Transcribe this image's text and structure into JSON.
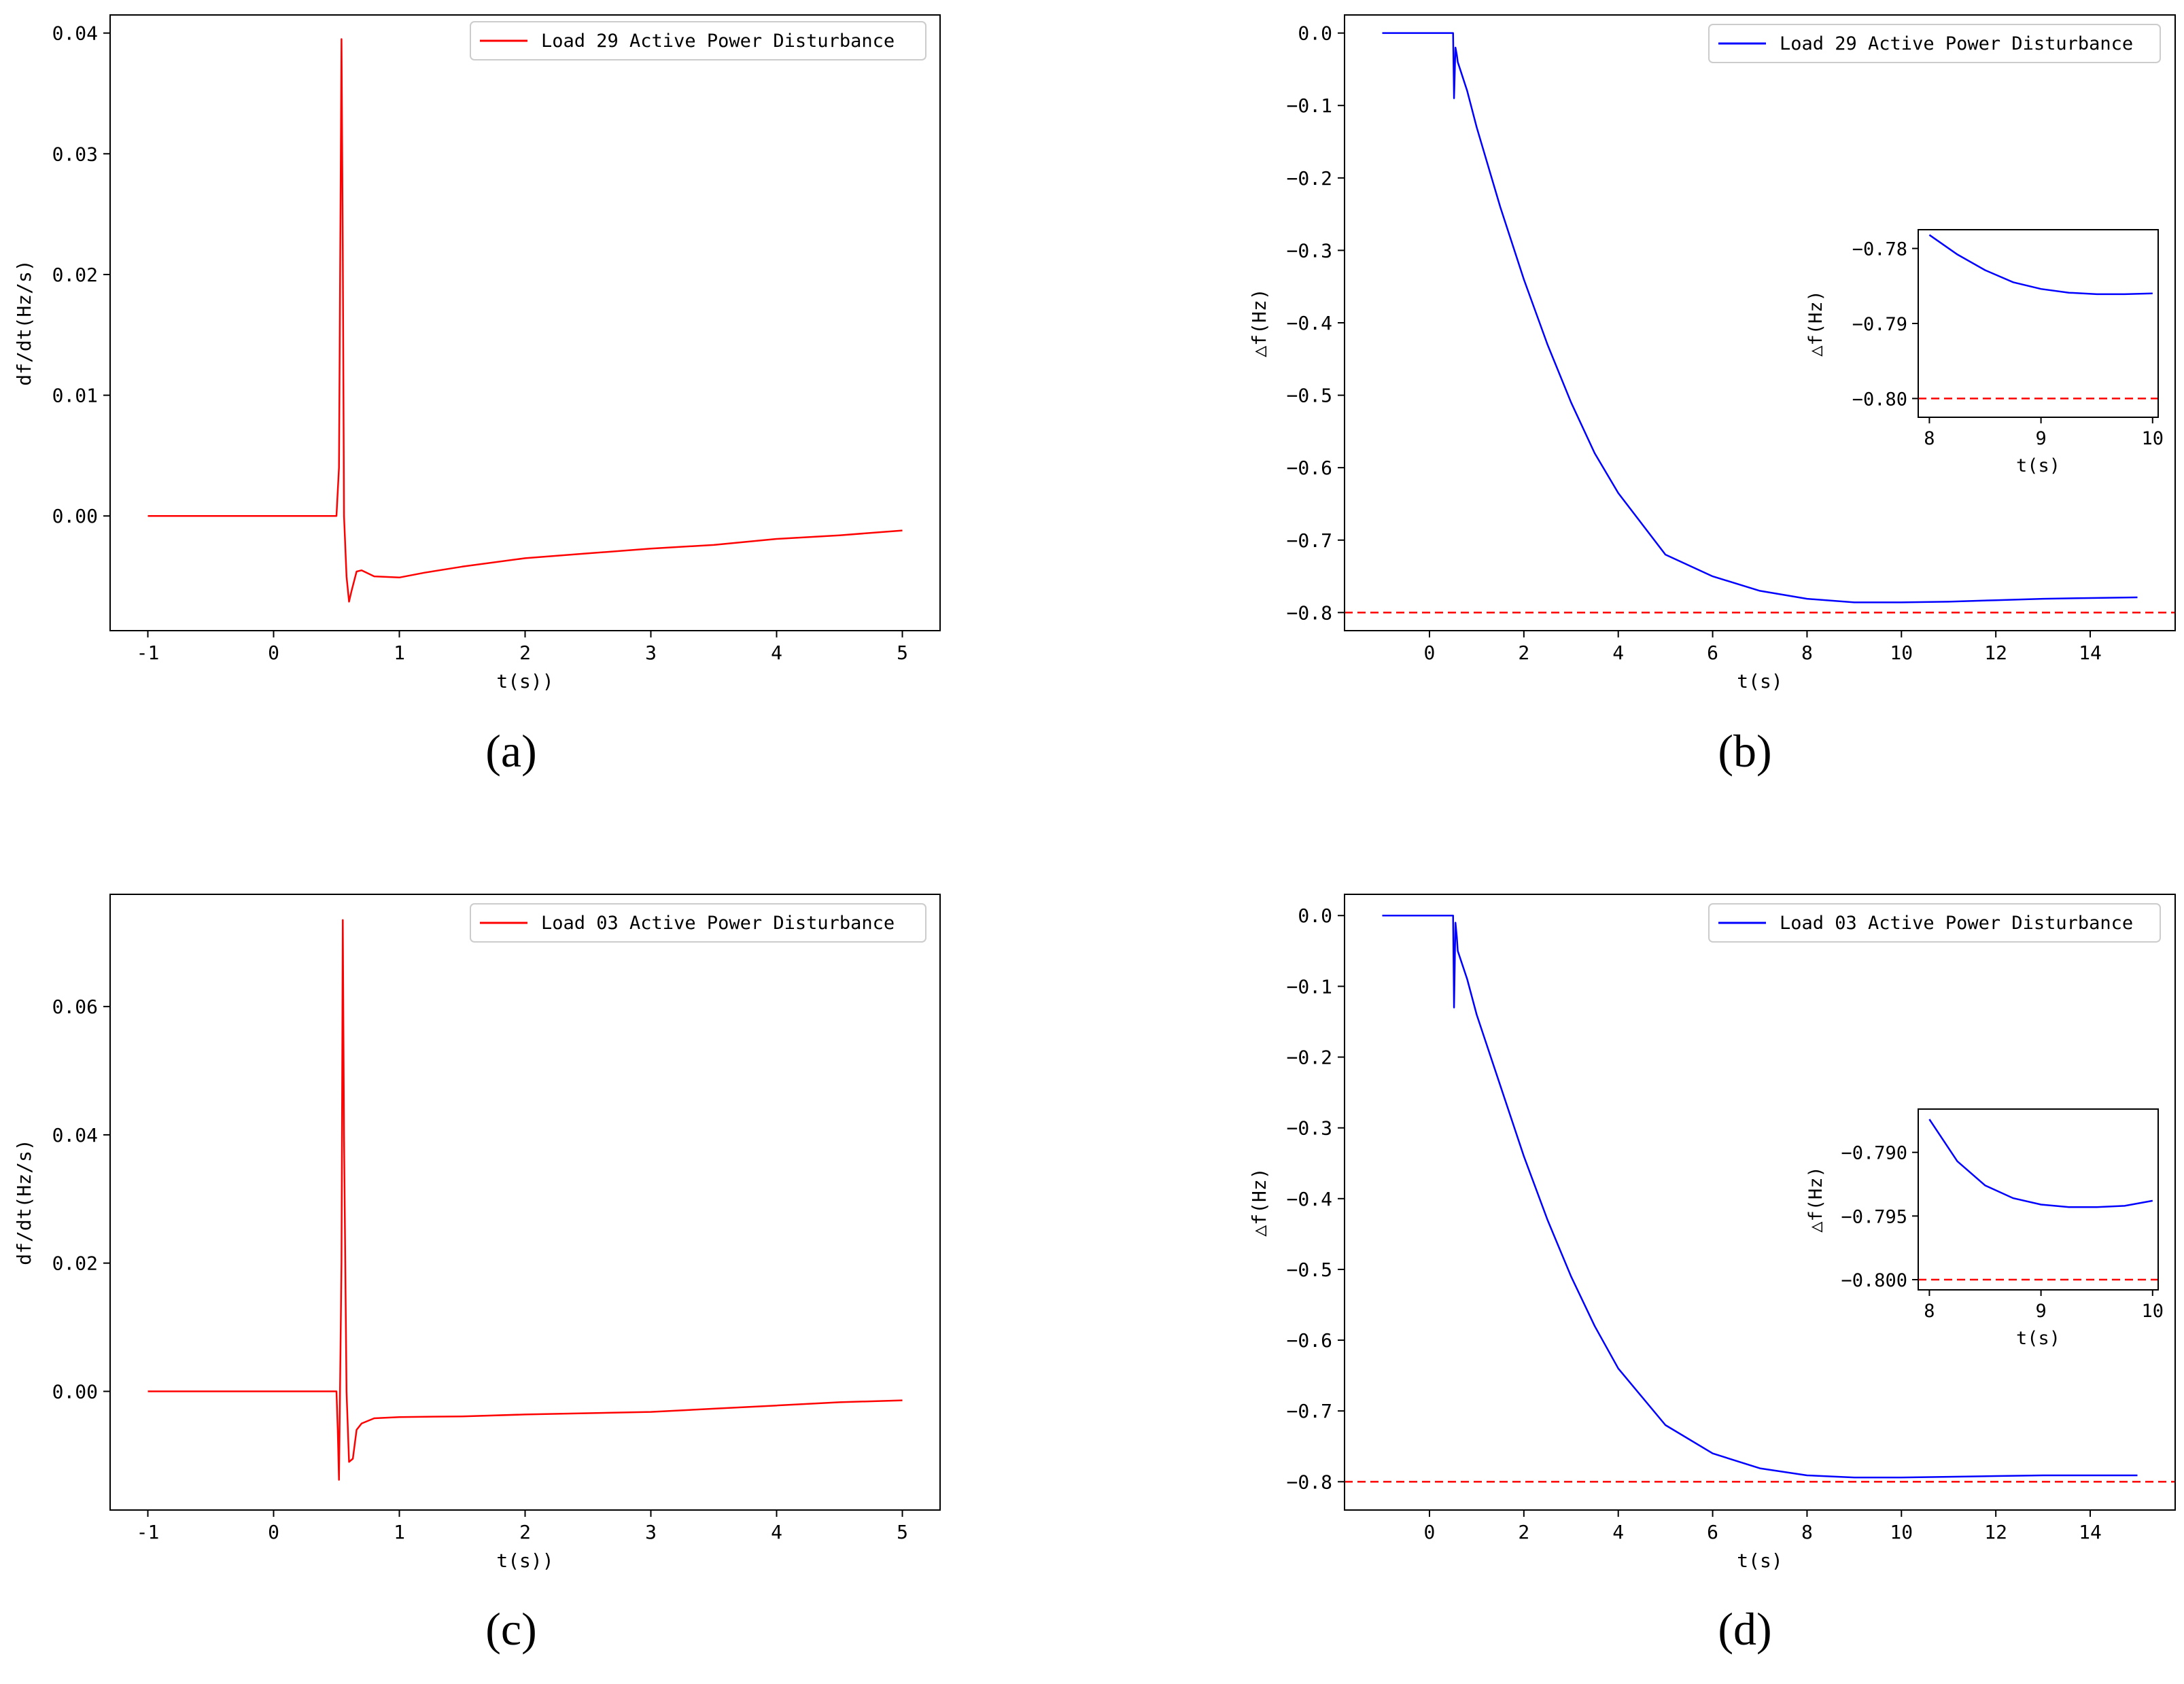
{
  "chart_data": [
    {
      "panel": "a",
      "panel_label": "(a)",
      "type": "line",
      "xlabel": "t(s))",
      "ylabel": "df/dt(Hz/s)",
      "xlim": [
        -1.3,
        5.3
      ],
      "ylim": [
        -0.0095,
        0.0415
      ],
      "xticks": [
        -1,
        0,
        1,
        2,
        3,
        4,
        5
      ],
      "yticks": [
        0.0,
        0.01,
        0.02,
        0.03,
        0.04
      ],
      "ytick_labels": [
        "0.00",
        "0.01",
        "0.02",
        "0.03",
        "0.04"
      ],
      "legend_position": "upper right",
      "series": [
        {
          "name": "Load 29 Active Power Disturbance",
          "color": "#ff0000",
          "x": [
            -1.0,
            -0.5,
            0.0,
            0.3,
            0.5,
            0.52,
            0.54,
            0.55,
            0.56,
            0.58,
            0.6,
            0.62,
            0.66,
            0.7,
            0.8,
            1.0,
            1.2,
            1.5,
            2.0,
            2.5,
            3.0,
            3.5,
            4.0,
            4.5,
            5.0
          ],
          "y": [
            0.0,
            0.0,
            0.0,
            0.0,
            0.0,
            0.004,
            0.0395,
            0.022,
            0.0,
            -0.005,
            -0.0071,
            -0.0062,
            -0.0046,
            -0.0045,
            -0.005,
            -0.0051,
            -0.0047,
            -0.0042,
            -0.0035,
            -0.0031,
            -0.0027,
            -0.0024,
            -0.0019,
            -0.0016,
            -0.0012
          ]
        }
      ]
    },
    {
      "panel": "b",
      "panel_label": "(b)",
      "type": "line",
      "xlabel": "t(s)",
      "ylabel": "△f(Hz)",
      "xlim": [
        -1.8,
        15.8
      ],
      "ylim": [
        -0.825,
        0.025
      ],
      "xticks": [
        0,
        2,
        4,
        6,
        8,
        10,
        12,
        14
      ],
      "yticks": [
        0.0,
        -0.1,
        -0.2,
        -0.3,
        -0.4,
        -0.5,
        -0.6,
        -0.7,
        -0.8
      ],
      "ytick_labels": [
        "0.0",
        "−0.1",
        "−0.2",
        "−0.3",
        "−0.4",
        "−0.5",
        "−0.6",
        "−0.7",
        "−0.8"
      ],
      "legend_position": "upper right",
      "reference_line": {
        "y": -0.8,
        "color": "#ff0000",
        "style": "dashed"
      },
      "series": [
        {
          "name": "Load 29 Active Power Disturbance",
          "color": "#0000ff",
          "x": [
            -1.0,
            0.5,
            0.52,
            0.55,
            0.58,
            0.6,
            0.8,
            1.0,
            1.5,
            2.0,
            2.5,
            3.0,
            3.5,
            4.0,
            5.0,
            6.0,
            7.0,
            8.0,
            9.0,
            10.0,
            11.0,
            12.0,
            13.0,
            14.0,
            15.0
          ],
          "y": [
            0.0,
            0.0,
            -0.09,
            -0.02,
            -0.03,
            -0.04,
            -0.08,
            -0.13,
            -0.24,
            -0.34,
            -0.43,
            -0.51,
            -0.58,
            -0.635,
            -0.72,
            -0.75,
            -0.77,
            -0.781,
            -0.786,
            -0.786,
            -0.785,
            -0.783,
            -0.781,
            -0.78,
            -0.779
          ]
        }
      ],
      "inset": {
        "xlabel": "t(s)",
        "ylabel": "△f(Hz)",
        "xlim": [
          7.9,
          10.05
        ],
        "ylim": [
          -0.8025,
          -0.7775
        ],
        "xticks": [
          8,
          9,
          10
        ],
        "yticks": [
          -0.78,
          -0.79,
          -0.8
        ],
        "ytick_labels": [
          "−0.78",
          "−0.79",
          "−0.80"
        ],
        "reference_line": {
          "y": -0.8,
          "color": "#ff0000",
          "style": "dashed"
        },
        "x": [
          8.0,
          8.25,
          8.5,
          8.75,
          9.0,
          9.25,
          9.5,
          9.75,
          10.0
        ],
        "y": [
          -0.7782,
          -0.7808,
          -0.7829,
          -0.7845,
          -0.7854,
          -0.7859,
          -0.7861,
          -0.7861,
          -0.786
        ]
      }
    },
    {
      "panel": "c",
      "panel_label": "(c)",
      "type": "line",
      "xlabel": "t(s))",
      "ylabel": "df/dt(Hz/s)",
      "xlim": [
        -1.3,
        5.3
      ],
      "ylim": [
        -0.0185,
        0.0775
      ],
      "xticks": [
        -1,
        0,
        1,
        2,
        3,
        4,
        5
      ],
      "yticks": [
        0.0,
        0.02,
        0.04,
        0.06
      ],
      "ytick_labels": [
        "0.00",
        "0.02",
        "0.04",
        "0.06"
      ],
      "legend_position": "upper right",
      "series": [
        {
          "name": "Load 03 Active Power Disturbance",
          "color": "#ff0000",
          "x": [
            -1.0,
            -0.5,
            0.0,
            0.3,
            0.5,
            0.51,
            0.52,
            0.54,
            0.55,
            0.56,
            0.58,
            0.6,
            0.63,
            0.66,
            0.7,
            0.8,
            1.0,
            1.5,
            2.0,
            2.5,
            3.0,
            3.5,
            4.0,
            4.5,
            5.0
          ],
          "y": [
            0.0,
            0.0,
            0.0,
            0.0,
            0.0,
            -0.006,
            -0.0138,
            0.02,
            0.0735,
            0.04,
            0.0,
            -0.011,
            -0.0105,
            -0.006,
            -0.005,
            -0.0042,
            -0.004,
            -0.0039,
            -0.0036,
            -0.0034,
            -0.0032,
            -0.0027,
            -0.0022,
            -0.0017,
            -0.0014
          ]
        }
      ]
    },
    {
      "panel": "d",
      "panel_label": "(d)",
      "type": "line",
      "xlabel": "t(s)",
      "ylabel": "△f(Hz)",
      "xlim": [
        -1.8,
        15.8
      ],
      "ylim": [
        -0.84,
        0.03
      ],
      "xticks": [
        0,
        2,
        4,
        6,
        8,
        10,
        12,
        14
      ],
      "yticks": [
        0.0,
        -0.1,
        -0.2,
        -0.3,
        -0.4,
        -0.5,
        -0.6,
        -0.7,
        -0.8
      ],
      "ytick_labels": [
        "0.0",
        "−0.1",
        "−0.2",
        "−0.3",
        "−0.4",
        "−0.5",
        "−0.6",
        "−0.7",
        "−0.8"
      ],
      "legend_position": "upper right",
      "reference_line": {
        "y": -0.8,
        "color": "#ff0000",
        "style": "dashed"
      },
      "series": [
        {
          "name": "Load 03 Active Power Disturbance",
          "color": "#0000ff",
          "x": [
            -1.0,
            0.5,
            0.52,
            0.55,
            0.58,
            0.6,
            0.8,
            1.0,
            1.5,
            2.0,
            2.5,
            3.0,
            3.5,
            4.0,
            5.0,
            6.0,
            7.0,
            8.0,
            9.0,
            10.0,
            11.0,
            12.0,
            13.0,
            14.0,
            15.0
          ],
          "y": [
            0.0,
            0.0,
            -0.13,
            -0.01,
            -0.03,
            -0.05,
            -0.09,
            -0.14,
            -0.24,
            -0.34,
            -0.43,
            -0.51,
            -0.58,
            -0.64,
            -0.72,
            -0.76,
            -0.781,
            -0.791,
            -0.794,
            -0.794,
            -0.793,
            -0.792,
            -0.791,
            -0.791,
            -0.791
          ]
        }
      ],
      "inset": {
        "xlabel": "t(s)",
        "ylabel": "△f(Hz)",
        "xlim": [
          7.9,
          10.05
        ],
        "ylim": [
          -0.8008,
          -0.7866
        ],
        "xticks": [
          8,
          9,
          10
        ],
        "yticks": [
          -0.79,
          -0.795,
          -0.8
        ],
        "ytick_labels": [
          "−0.790",
          "−0.795",
          "−0.800"
        ],
        "reference_line": {
          "y": -0.8,
          "color": "#ff0000",
          "style": "dashed"
        },
        "x": [
          8.0,
          8.25,
          8.5,
          8.75,
          9.0,
          9.25,
          9.5,
          9.75,
          10.0
        ],
        "y": [
          -0.7874,
          -0.7907,
          -0.7926,
          -0.7936,
          -0.7941,
          -0.7943,
          -0.7943,
          -0.7942,
          -0.7938
        ]
      }
    }
  ]
}
